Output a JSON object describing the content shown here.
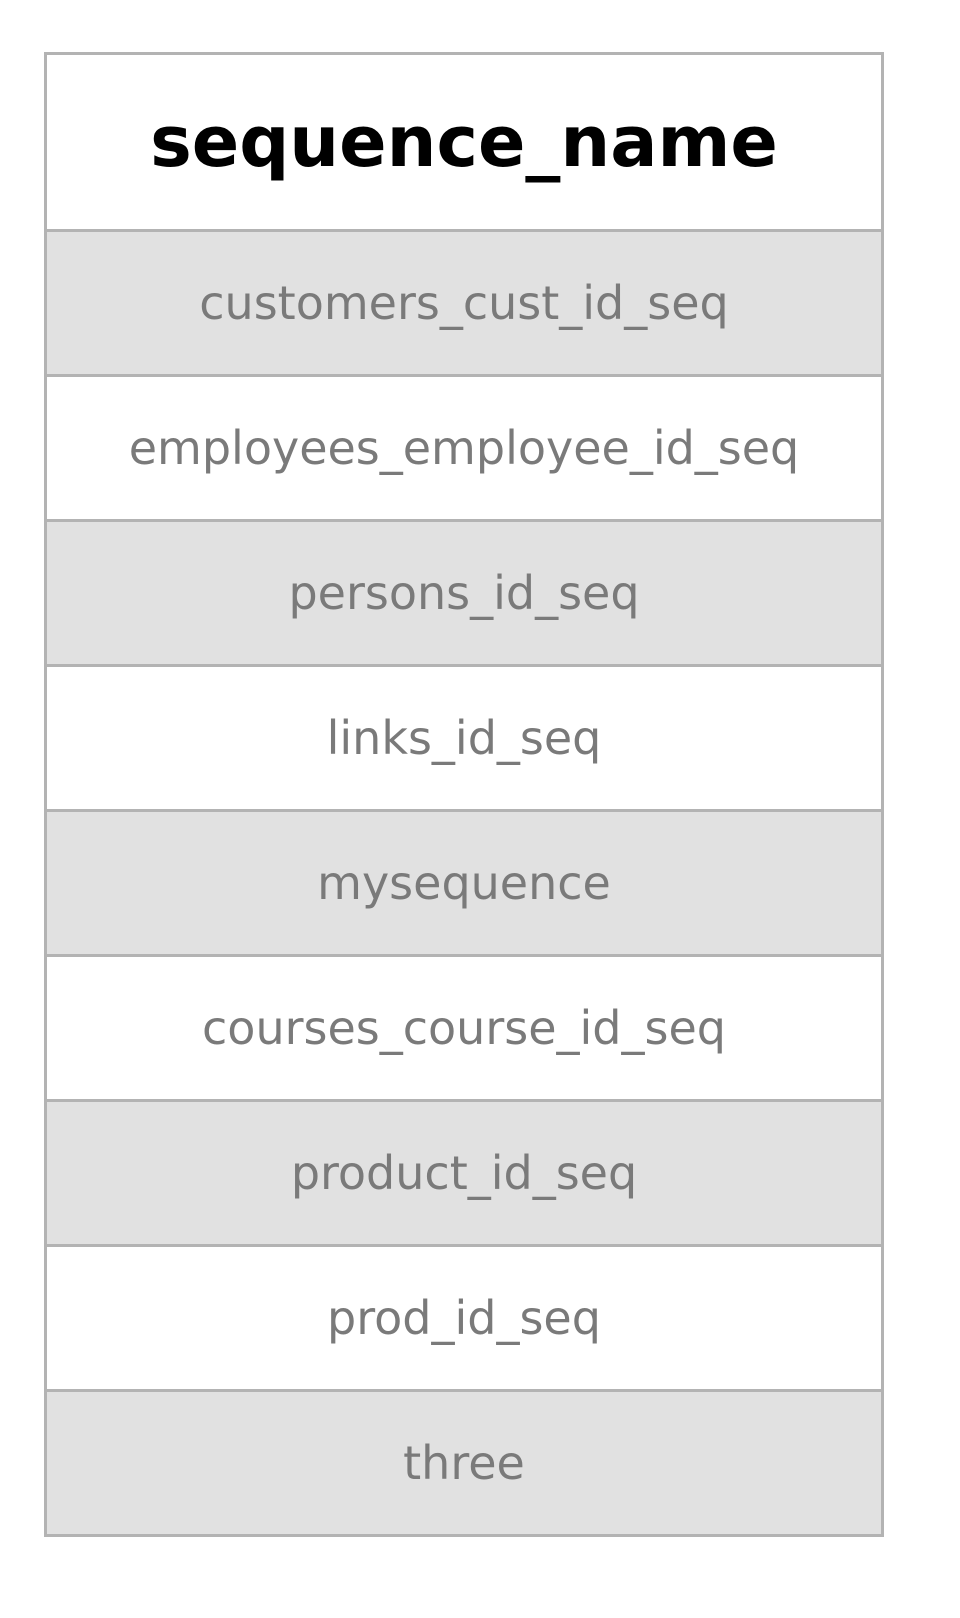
{
  "table": {
    "header": "sequence_name",
    "rows": [
      "customers_cust_id_seq",
      "employees_employee_id_seq",
      "persons_id_seq",
      "links_id_seq",
      "mysequence",
      "courses_course_id_seq",
      "product_id_seq",
      "prod_id_seq",
      "three"
    ],
    "colors": {
      "border": "#b3b3b3",
      "stripe": "#e1e1e1",
      "cell_text": "#7a7a7a",
      "header_text": "#000000"
    }
  }
}
